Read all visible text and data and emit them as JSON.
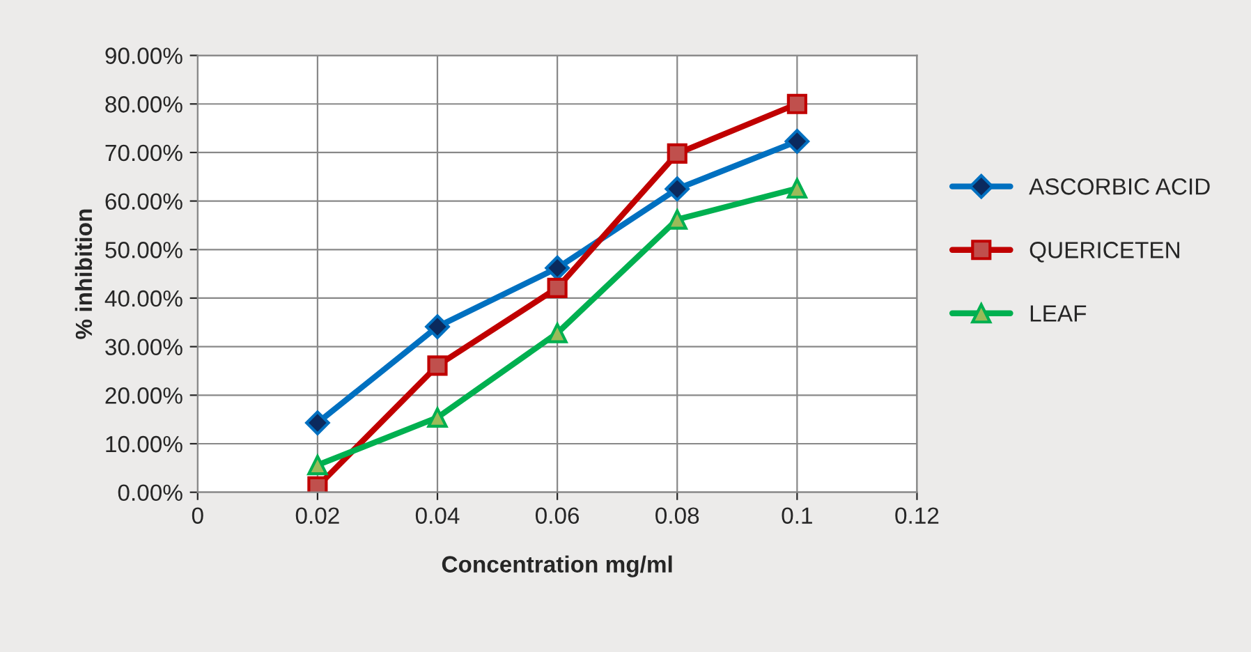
{
  "chart_data": {
    "type": "line",
    "xlabel": "Concentration mg/ml",
    "ylabel": "% inhibition",
    "xlim": [
      0,
      0.12
    ],
    "xticks": [
      0,
      0.02,
      0.04,
      0.06,
      0.08,
      0.1,
      0.12
    ],
    "ylim": [
      0,
      90
    ],
    "yticks": [
      {
        "value": 0,
        "label": "0.00%"
      },
      {
        "value": 10,
        "label": "10.00%"
      },
      {
        "value": 20,
        "label": "20.00%"
      },
      {
        "value": 30,
        "label": "30.00%"
      },
      {
        "value": 40,
        "label": "40.00%"
      },
      {
        "value": 50,
        "label": "50.00%"
      },
      {
        "value": 60,
        "label": "60.00%"
      },
      {
        "value": 70,
        "label": "70.00%"
      },
      {
        "value": 80,
        "label": "80.00%"
      },
      {
        "value": 90,
        "label": "90.00%"
      }
    ],
    "grid": true,
    "legend": "right",
    "line_style": "solid",
    "series": [
      {
        "name": "ASCORBIC ACID",
        "color": "#0070c0",
        "marker": "diamond",
        "x": [
          0.02,
          0.04,
          0.06,
          0.08,
          0.1
        ],
        "values": [
          14.3,
          34.1,
          46.2,
          62.5,
          72.3
        ]
      },
      {
        "name": "QUERICETEN",
        "color": "#c00000",
        "marker": "square",
        "x": [
          0.02,
          0.04,
          0.06,
          0.08,
          0.1
        ],
        "values": [
          1.2,
          26.1,
          42.1,
          69.8,
          80.0
        ]
      },
      {
        "name": "LEAF",
        "color": "#00b050",
        "marker": "triangle",
        "x": [
          0.02,
          0.04,
          0.06,
          0.08,
          0.1
        ],
        "values": [
          5.6,
          15.4,
          32.8,
          56.2,
          62.6
        ]
      }
    ]
  }
}
